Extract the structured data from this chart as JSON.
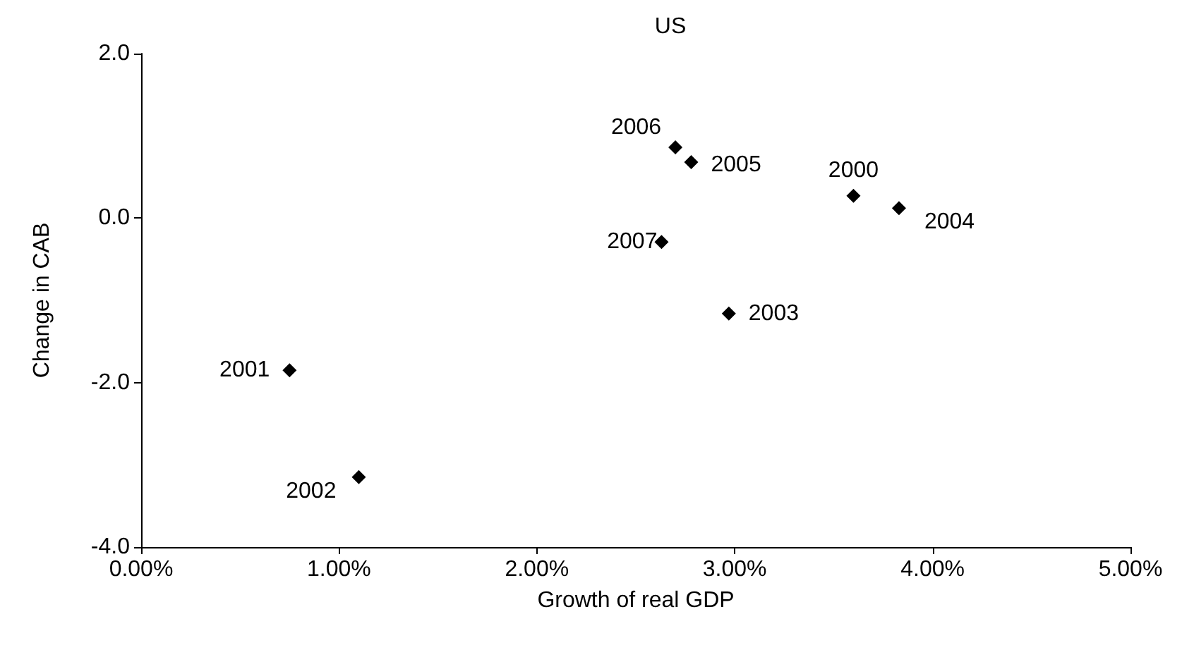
{
  "chart_data": {
    "type": "scatter",
    "title": "US",
    "xlabel": "Growth of real GDP",
    "ylabel": "Change in CAB",
    "x": [
      3.6,
      0.75,
      1.1,
      2.97,
      3.83,
      2.78,
      2.7,
      2.63
    ],
    "values": [
      0.27,
      -1.85,
      -3.15,
      -1.16,
      0.12,
      0.68,
      0.86,
      -0.29
    ],
    "color": "#000000",
    "marker": "diamond",
    "grid": false,
    "xlim": [
      0,
      5
    ],
    "xticks": [
      {
        "value": 0,
        "label": "0.00%"
      },
      {
        "value": 1,
        "label": "1.00%"
      },
      {
        "value": 2,
        "label": "2.00%"
      },
      {
        "value": 3,
        "label": "3.00%"
      },
      {
        "value": 4,
        "label": "4.00%"
      },
      {
        "value": 5,
        "label": "5.00%"
      }
    ],
    "ylim": [
      -4,
      2
    ],
    "yticks": [
      {
        "value": -4,
        "label": "-4.0"
      },
      {
        "value": -2,
        "label": "-2.0"
      },
      {
        "value": 0,
        "label": "0.0"
      },
      {
        "value": 2,
        "label": "2.0"
      }
    ],
    "annotations": [
      {
        "text": "2000",
        "x": 3.6,
        "y": 0.27
      },
      {
        "text": "2001",
        "x": 0.75,
        "y": -1.85
      },
      {
        "text": "2002",
        "x": 1.1,
        "y": -3.15
      },
      {
        "text": "2003",
        "x": 2.97,
        "y": -1.16
      },
      {
        "text": "2004",
        "x": 3.83,
        "y": 0.12
      },
      {
        "text": "2005",
        "x": 2.78,
        "y": 0.68
      },
      {
        "text": "2006",
        "x": 2.7,
        "y": 0.86
      },
      {
        "text": "2007",
        "x": 2.63,
        "y": -0.29
      }
    ]
  }
}
